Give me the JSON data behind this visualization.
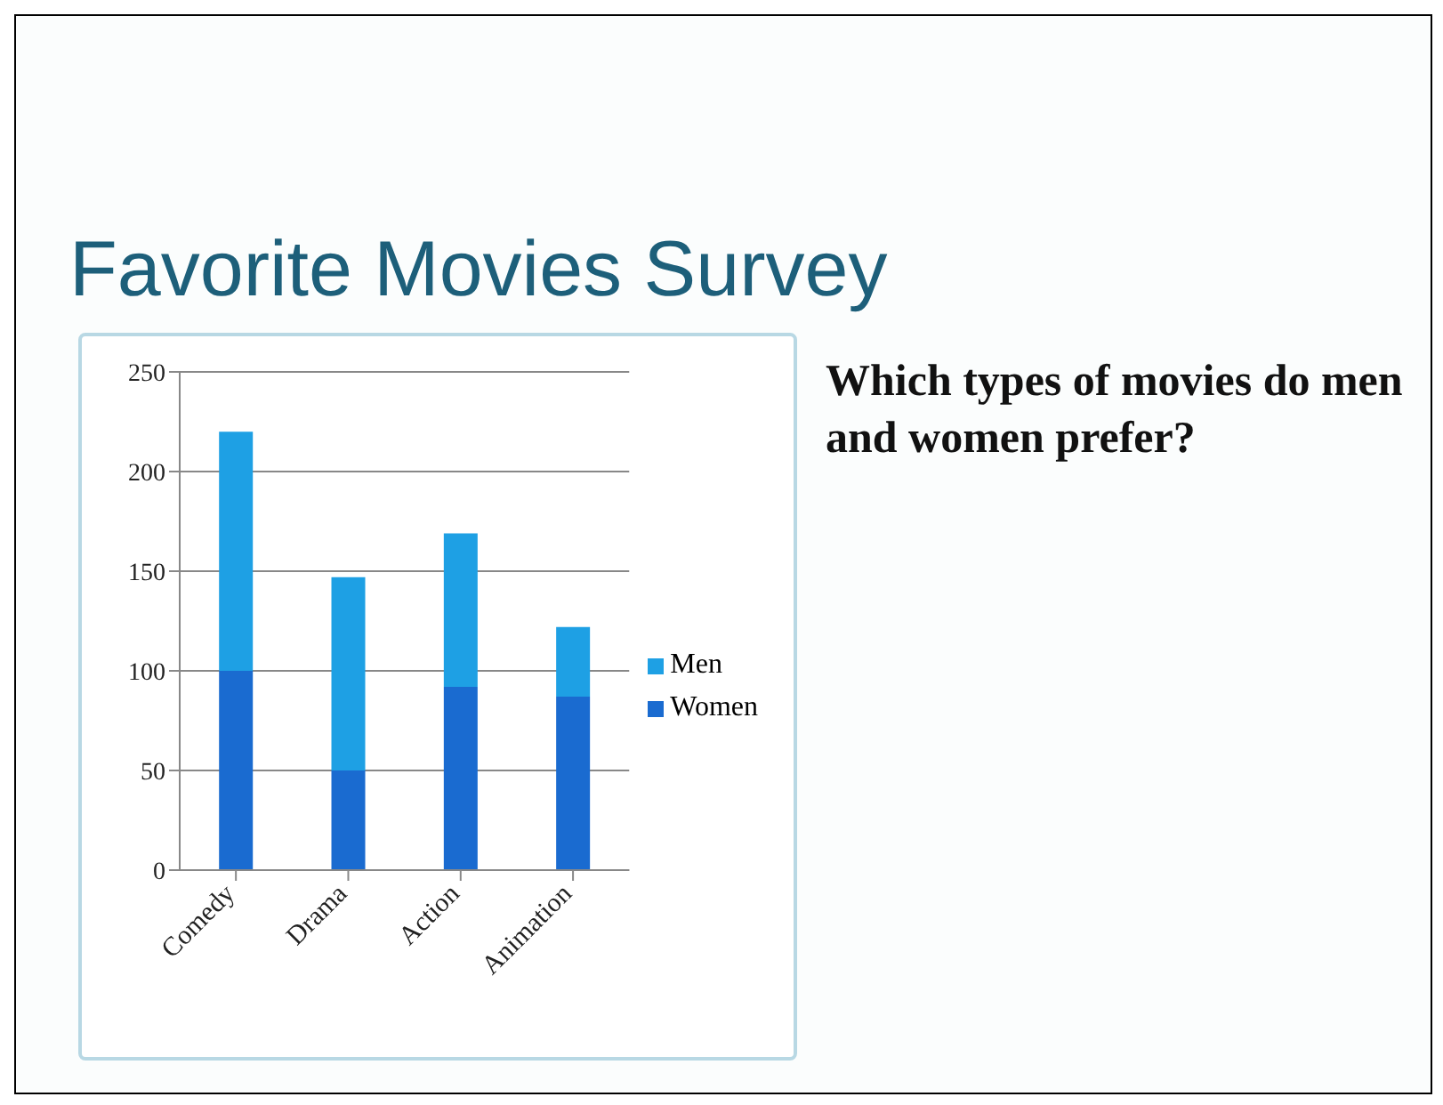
{
  "chart_data": {
    "type": "bar",
    "title": "Favorite Movies Survey",
    "annotations": [
      "Which types of movies do men and women prefer?"
    ],
    "categories": [
      "Comedy",
      "Drama",
      "Action",
      "Animation"
    ],
    "stacked": true,
    "series": [
      {
        "name": "Women",
        "color": "#1a6bd0",
        "values": [
          100,
          50,
          92,
          87
        ]
      },
      {
        "name": "Men",
        "color": "#1ea0e4",
        "values": [
          120,
          97,
          77,
          35
        ]
      }
    ],
    "ylim": [
      0,
      250
    ],
    "yticks": [
      0,
      50,
      100,
      150,
      200,
      250
    ],
    "grid": "y",
    "legend": "right"
  }
}
